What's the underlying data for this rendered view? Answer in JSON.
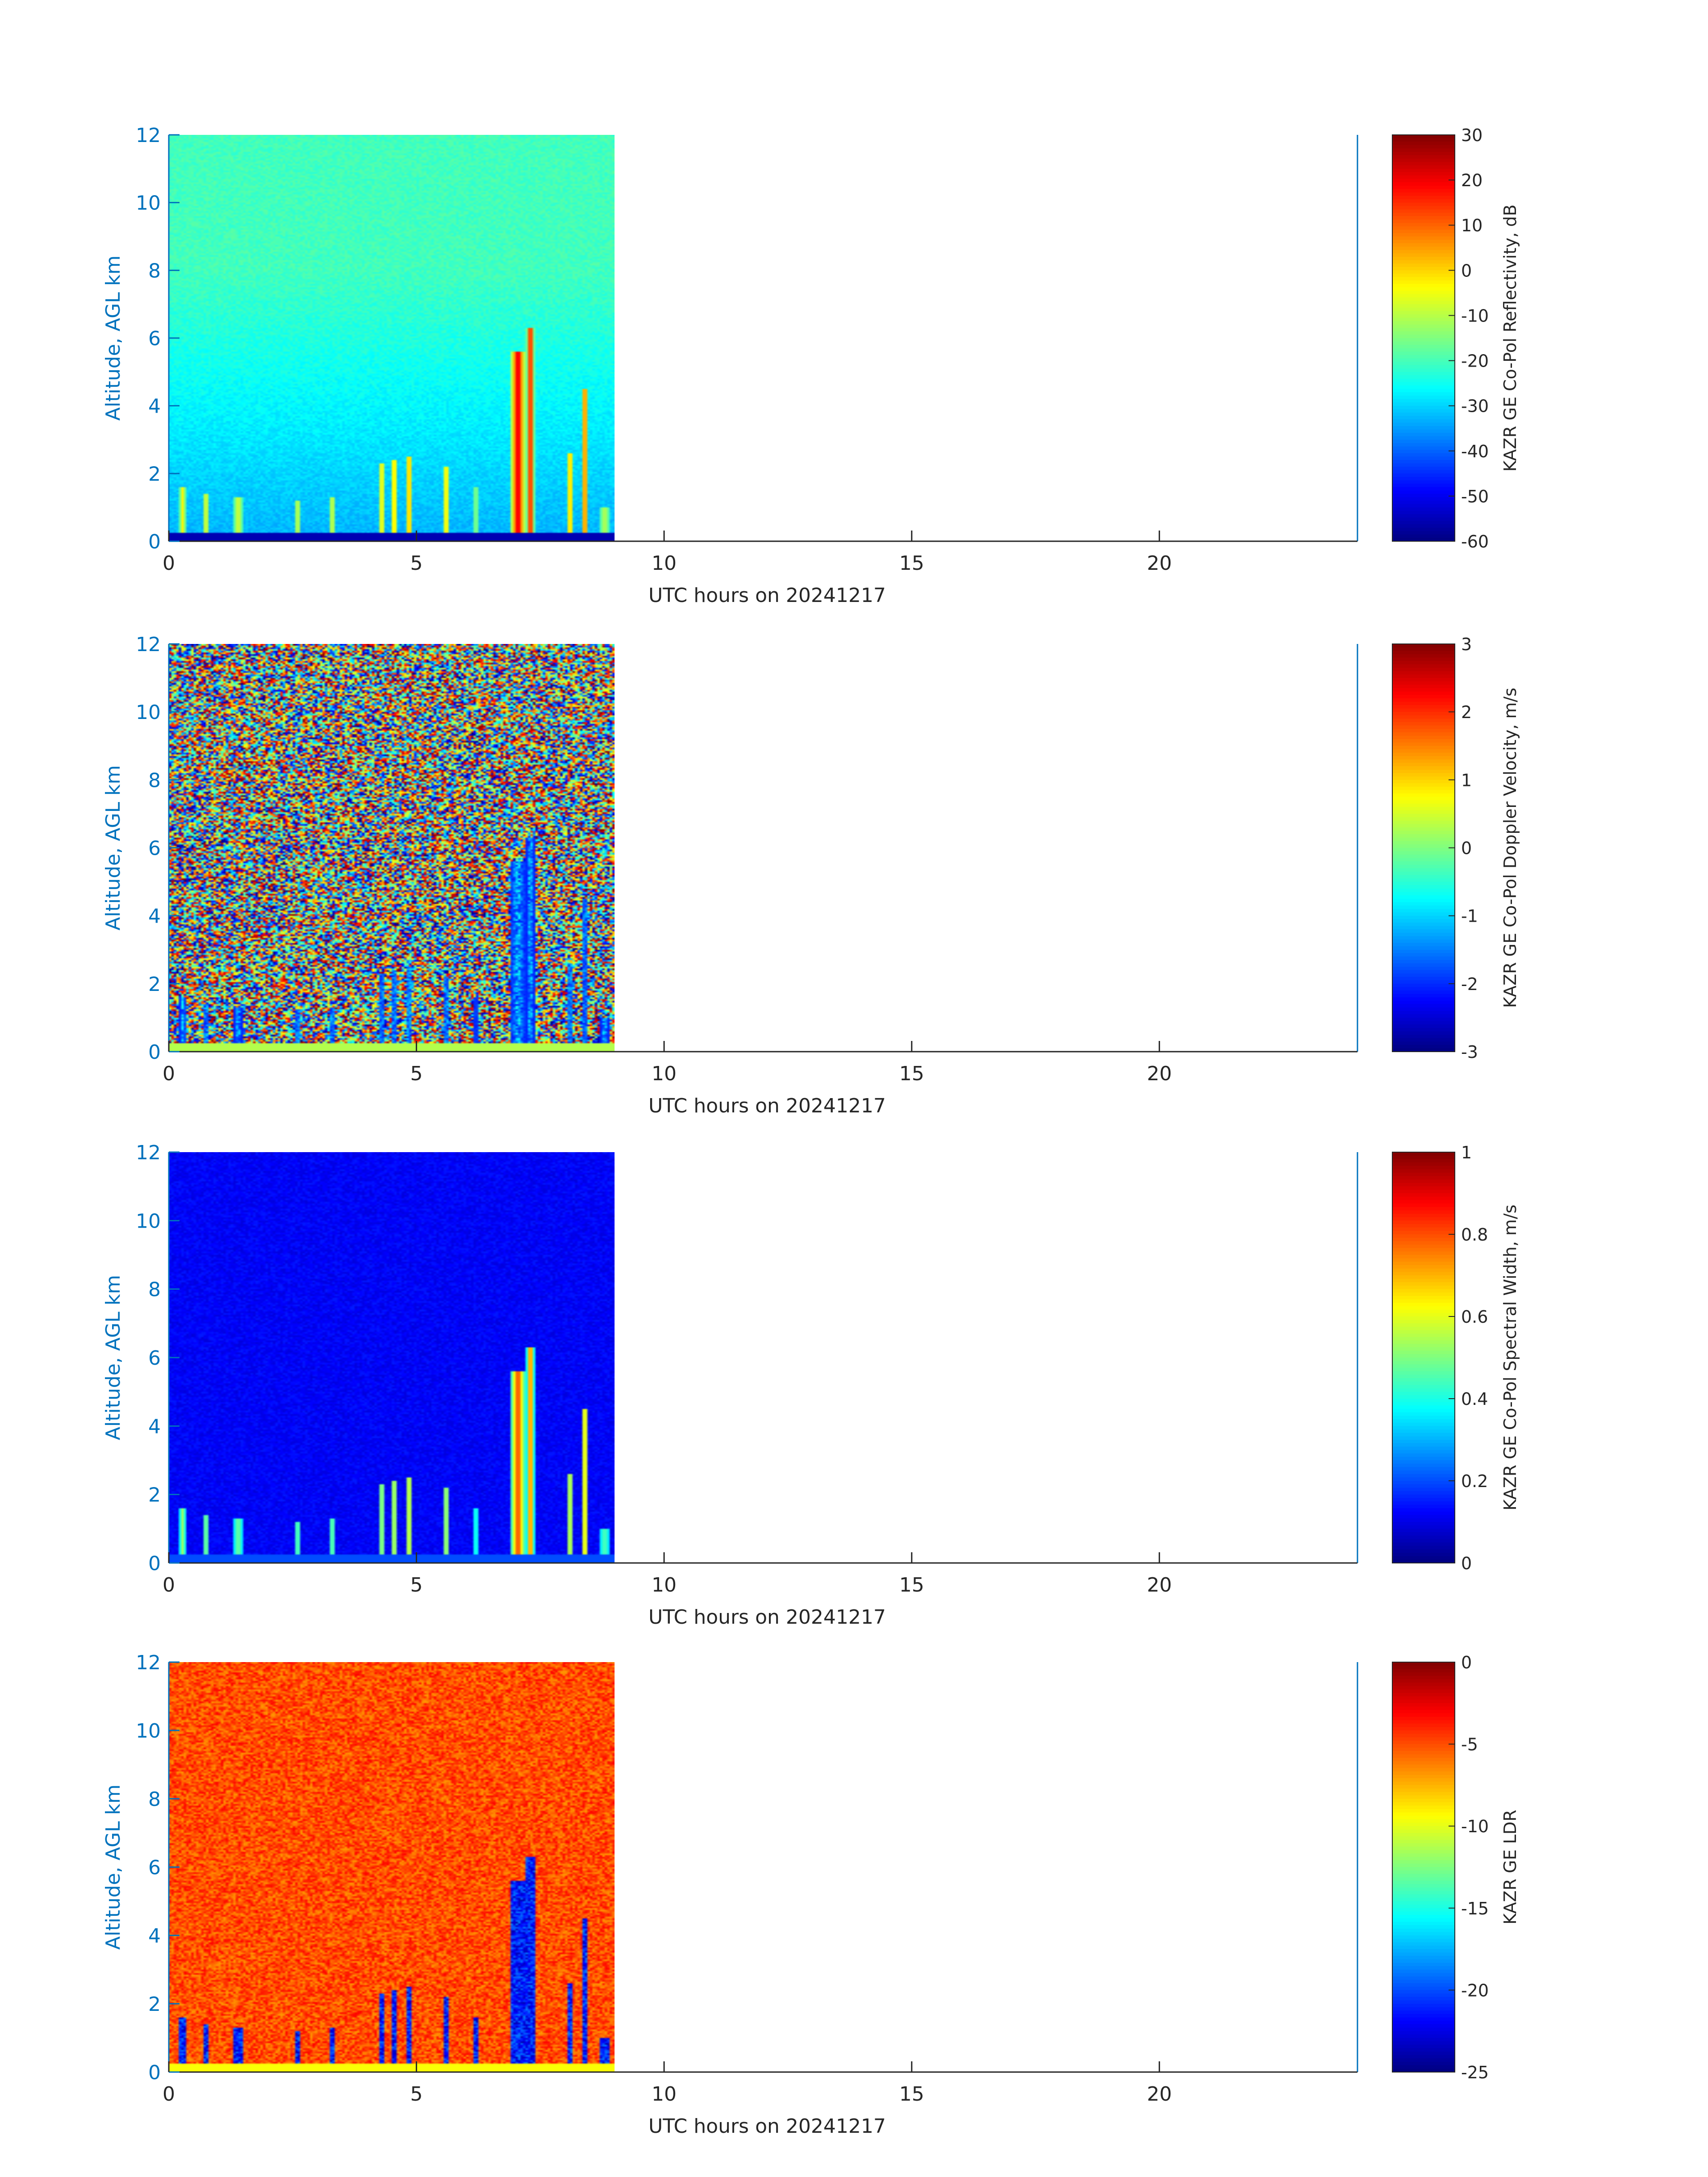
{
  "chart_data": [
    {
      "type": "heatmap",
      "xlabel": "UTC hours on 20241217",
      "ylabel": "Altitude, AGL km",
      "xlim": [
        0,
        24
      ],
      "ylim": [
        0,
        12
      ],
      "xticks": [
        "0",
        "5",
        "10",
        "15",
        "20"
      ],
      "yticks": [
        "0",
        "2",
        "4",
        "6",
        "8",
        "10",
        "12"
      ],
      "data_extent_hours": [
        0,
        9
      ],
      "colorbar": {
        "label": "KAZR GE Co-Pol Reflectivity, dB",
        "range": [
          -60,
          30
        ],
        "ticks": [
          "-60",
          "-50",
          "-40",
          "-30",
          "-20",
          "-10",
          "0",
          "10",
          "20",
          "30"
        ],
        "colormap": "jet"
      }
    },
    {
      "type": "heatmap",
      "xlabel": "UTC hours on 20241217",
      "ylabel": "Altitude, AGL km",
      "xlim": [
        0,
        24
      ],
      "ylim": [
        0,
        12
      ],
      "xticks": [
        "0",
        "5",
        "10",
        "15",
        "20"
      ],
      "yticks": [
        "0",
        "2",
        "4",
        "6",
        "8",
        "10",
        "12"
      ],
      "data_extent_hours": [
        0,
        9
      ],
      "colorbar": {
        "label": "KAZR GE Co-Pol Doppler Velocity, m/s",
        "range": [
          -3,
          3
        ],
        "ticks": [
          "-3",
          "-2",
          "-1",
          "0",
          "1",
          "2",
          "3"
        ],
        "colormap": "jet"
      }
    },
    {
      "type": "heatmap",
      "xlabel": "UTC hours on 20241217",
      "ylabel": "Altitude, AGL km",
      "xlim": [
        0,
        24
      ],
      "ylim": [
        0,
        12
      ],
      "xticks": [
        "0",
        "5",
        "10",
        "15",
        "20"
      ],
      "yticks": [
        "0",
        "2",
        "4",
        "6",
        "8",
        "10",
        "12"
      ],
      "data_extent_hours": [
        0,
        9
      ],
      "colorbar": {
        "label": "KAZR GE Co-Pol Spectral Width, m/s",
        "range": [
          0,
          1
        ],
        "ticks": [
          "0",
          "0.2",
          "0.4",
          "0.6",
          "0.8",
          "1"
        ],
        "colormap": "jet"
      }
    },
    {
      "type": "heatmap",
      "xlabel": "UTC hours on 20241217",
      "ylabel": "Altitude, AGL km",
      "xlim": [
        0,
        24
      ],
      "ylim": [
        0,
        12
      ],
      "xticks": [
        "0",
        "5",
        "10",
        "15",
        "20"
      ],
      "yticks": [
        "0",
        "2",
        "4",
        "6",
        "8",
        "10",
        "12"
      ],
      "data_extent_hours": [
        0,
        9
      ],
      "colorbar": {
        "label": "KAZR GE LDR",
        "range": [
          -25,
          0
        ],
        "ticks": [
          "-25",
          "-20",
          "-15",
          "-10",
          "-5",
          "0"
        ],
        "colormap": "jet"
      }
    }
  ],
  "style": {
    "y_axis_color": "#0072bd",
    "x_axis_color": "#262626"
  }
}
